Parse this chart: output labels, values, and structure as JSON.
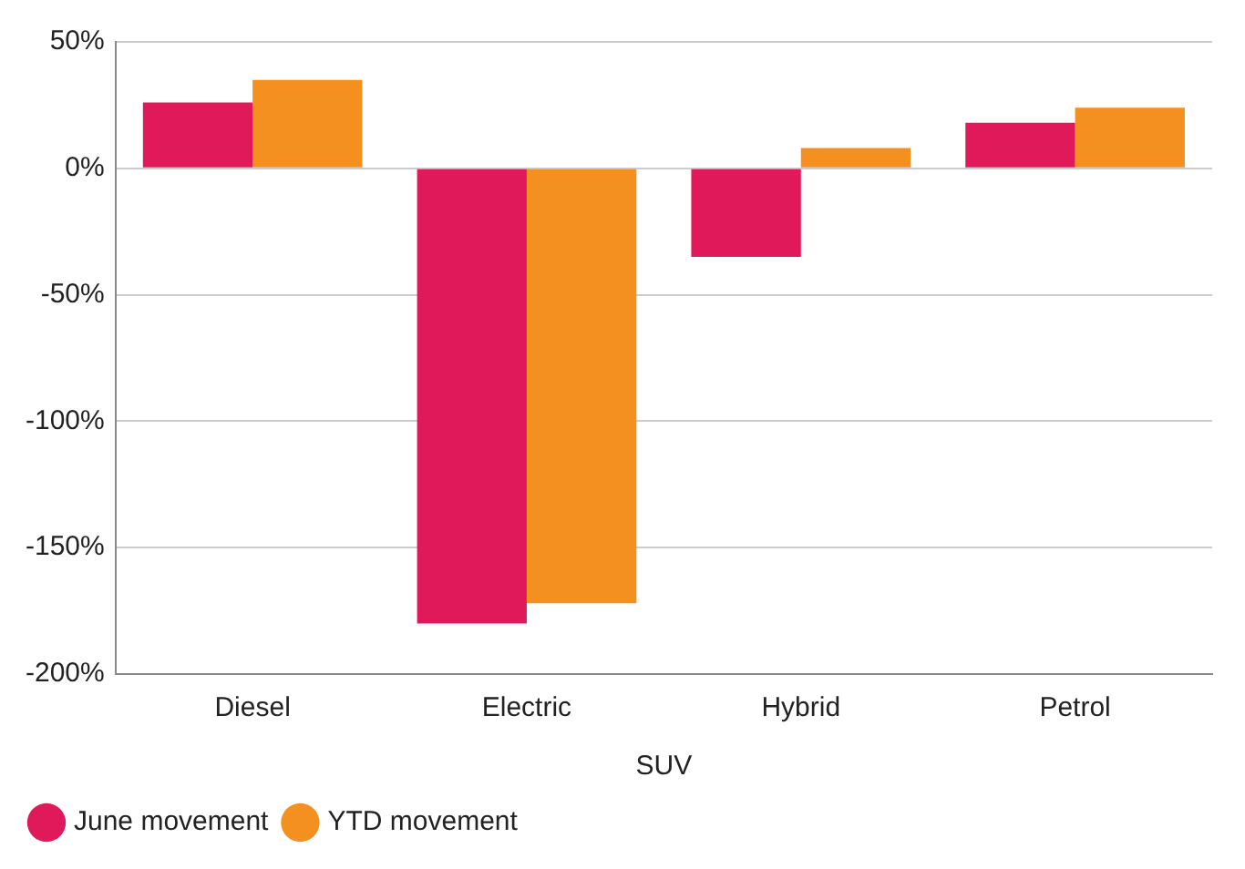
{
  "chart_data": {
    "type": "bar",
    "xlabel": "SUV",
    "categories": [
      "Diesel",
      "Electric",
      "Hybrid",
      "Petrol"
    ],
    "series": [
      {
        "name": "June movement",
        "color": "#e0195a",
        "values": [
          26,
          -180,
          -35,
          18
        ]
      },
      {
        "name": "YTD movement",
        "color": "#f39020",
        "values": [
          35,
          -172,
          8,
          24
        ]
      }
    ],
    "ylim": [
      -200,
      50
    ],
    "yticks": [
      {
        "value": -200,
        "label": "-200%"
      },
      {
        "value": -150,
        "label": "-150%"
      },
      {
        "value": -100,
        "label": "-100%"
      },
      {
        "value": -50,
        "label": "-50%"
      },
      {
        "value": 0,
        "label": "0%"
      },
      {
        "value": 50,
        "label": "50%"
      }
    ],
    "grid": "y",
    "legend": "bottom left"
  }
}
